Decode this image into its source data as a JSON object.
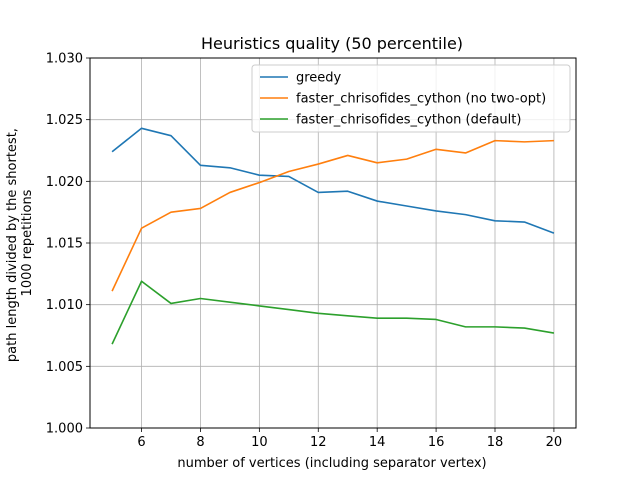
{
  "chart_data": {
    "type": "line",
    "title": "Heuristics quality (50 percentile)",
    "xlabel": "number of vertices (including separator vertex)",
    "ylabel_lines": [
      "path length divided by the shortest,",
      "1000 repetitions"
    ],
    "xlim": [
      4.25,
      20.75
    ],
    "ylim": [
      1.0,
      1.03
    ],
    "xticks": [
      6,
      8,
      10,
      12,
      14,
      16,
      18,
      20
    ],
    "xtick_labels": [
      "6",
      "8",
      "10",
      "12",
      "14",
      "16",
      "18",
      "20"
    ],
    "yticks": [
      1.0,
      1.005,
      1.01,
      1.015,
      1.02,
      1.025,
      1.03
    ],
    "ytick_labels": [
      "1.000",
      "1.005",
      "1.010",
      "1.015",
      "1.020",
      "1.025",
      "1.030"
    ],
    "grid": true,
    "legend_position": "top-right",
    "x": [
      5,
      6,
      7,
      8,
      9,
      10,
      11,
      12,
      13,
      14,
      15,
      16,
      17,
      18,
      19,
      20
    ],
    "series": [
      {
        "name": "greedy",
        "color": "#1f77b4",
        "values": [
          1.0224,
          1.0243,
          1.0237,
          1.0213,
          1.0211,
          1.0205,
          1.0204,
          1.0191,
          1.0192,
          1.0184,
          1.018,
          1.0176,
          1.0173,
          1.0168,
          1.0167,
          1.0158
        ]
      },
      {
        "name": "faster_chrisofides_cython (no two-opt)",
        "color": "#ff7f0e",
        "values": [
          1.0111,
          1.0162,
          1.0175,
          1.0178,
          1.0191,
          1.0199,
          1.0208,
          1.0214,
          1.0221,
          1.0215,
          1.0218,
          1.0226,
          1.0223,
          1.0233,
          1.0232,
          1.0233
        ]
      },
      {
        "name": "faster_chrisofides_cython (default)",
        "color": "#2ca02c",
        "values": [
          1.0068,
          1.0119,
          1.0101,
          1.0105,
          1.0102,
          1.0099,
          1.0096,
          1.0093,
          1.0091,
          1.0089,
          1.0089,
          1.0088,
          1.0082,
          1.0082,
          1.0081,
          1.0077
        ]
      }
    ]
  }
}
